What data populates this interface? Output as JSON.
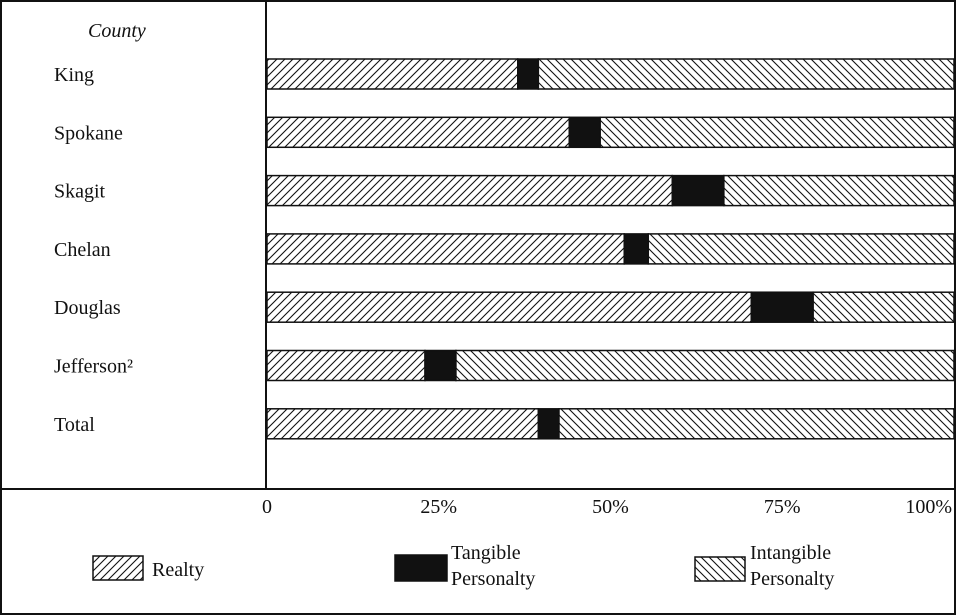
{
  "chart_data": {
    "type": "bar",
    "stacked": true,
    "orientation": "horizontal",
    "column_header": "County",
    "categories": [
      "King",
      "Spokane",
      "Skagit",
      "Chelan",
      "Douglas",
      "Jefferson²",
      "Total"
    ],
    "series": [
      {
        "name": "Realty",
        "pattern": "diagonal-forward",
        "values": [
          36.5,
          44,
          59,
          52,
          70.5,
          23,
          39.5
        ]
      },
      {
        "name": "Tangible Personalty",
        "pattern": "solid-black",
        "values": [
          3,
          4.5,
          7.5,
          3.5,
          9,
          4.5,
          3
        ]
      },
      {
        "name": "Intangible Personalty",
        "pattern": "diagonal-backward",
        "values": [
          60.5,
          51.5,
          33.5,
          44.5,
          20.5,
          72.5,
          57.5
        ]
      }
    ],
    "xlim": [
      0,
      100
    ],
    "tick_labels": [
      "0",
      "25%",
      "50%",
      "75%",
      "100%"
    ],
    "legend_position": "bottom",
    "colors": {
      "ink": "#111111",
      "background": "#ffffff"
    }
  }
}
